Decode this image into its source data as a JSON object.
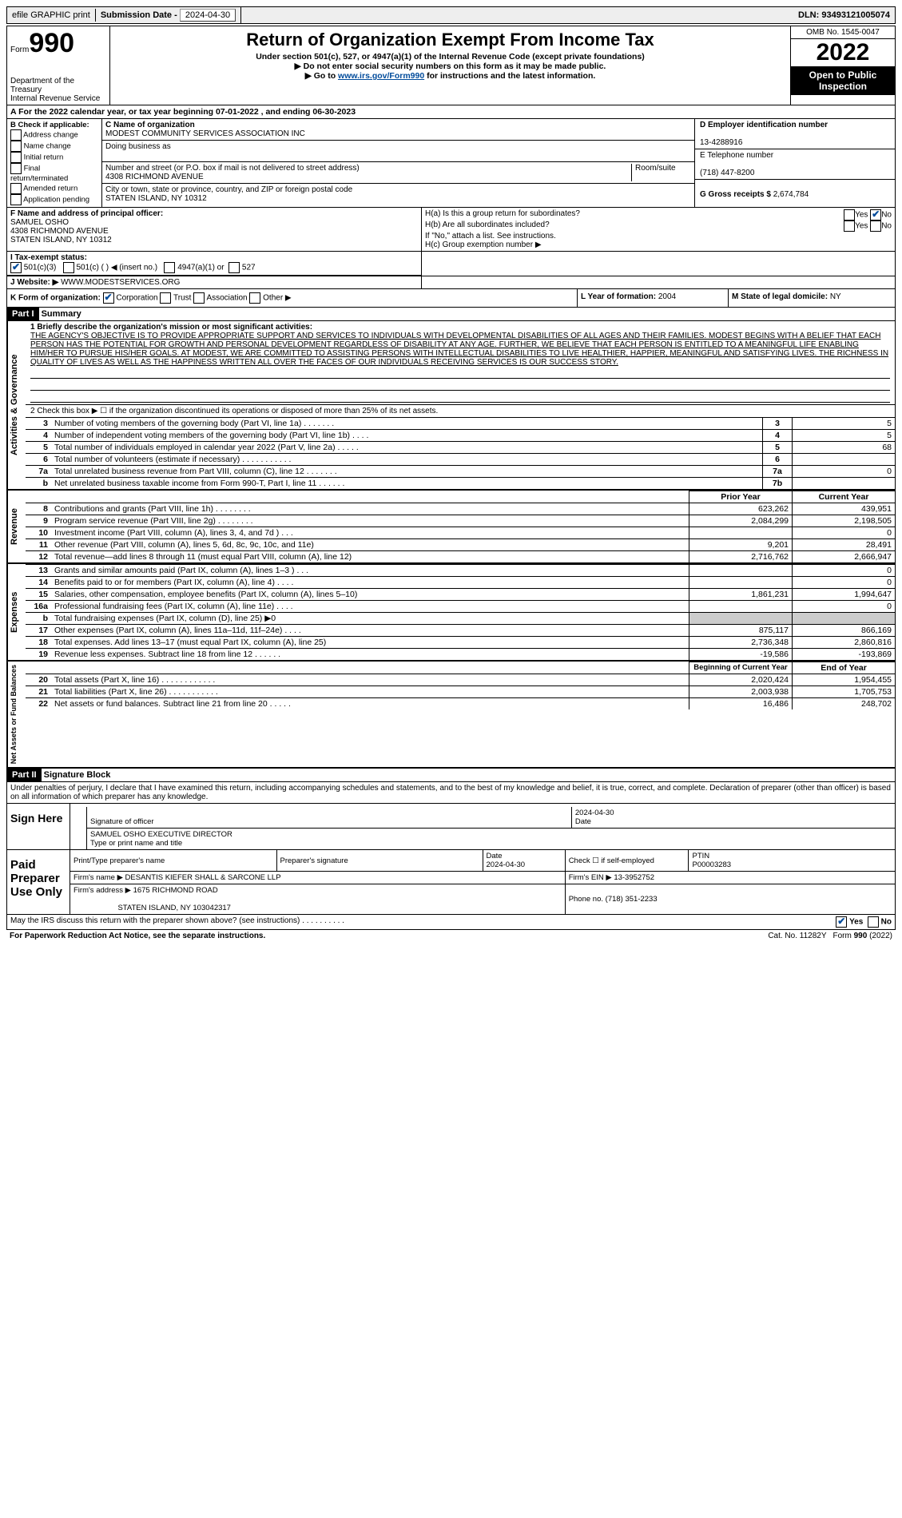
{
  "topbar": {
    "efile": "efile GRAPHIC print",
    "submission_label": "Submission Date - ",
    "submission_date": "2024-04-30",
    "dln_label": "DLN: ",
    "dln": "93493121005074"
  },
  "header": {
    "form_label": "Form",
    "form_num": "990",
    "dept": "Department of the Treasury\nInternal Revenue Service",
    "title": "Return of Organization Exempt From Income Tax",
    "sub1": "Under section 501(c), 527, or 4947(a)(1) of the Internal Revenue Code (except private foundations)",
    "sub2": "▶ Do not enter social security numbers on this form as it may be made public.",
    "sub3a": "▶ Go to ",
    "sub3_link": "www.irs.gov/Form990",
    "sub3b": " for instructions and the latest information.",
    "omb": "OMB No. 1545-0047",
    "year": "2022",
    "open": "Open to Public Inspection"
  },
  "row_a": {
    "text_a": "A For the 2022 calendar year, or tax year beginning ",
    "begin": "07-01-2022",
    "text_b": " , and ending ",
    "end": "06-30-2023"
  },
  "col_b": {
    "title": "B Check if applicable:",
    "items": [
      "Address change",
      "Name change",
      "Initial return",
      "Final return/terminated",
      "Amended return",
      "Application pending"
    ]
  },
  "col_c": {
    "name_label": "C Name of organization",
    "name": "MODEST COMMUNITY SERVICES ASSOCIATION INC",
    "dba_label": "Doing business as",
    "dba": "",
    "street_label": "Number and street (or P.O. box if mail is not delivered to street address)",
    "room_label": "Room/suite",
    "street": "4308 RICHMOND AVENUE",
    "city_label": "City or town, state or province, country, and ZIP or foreign postal code",
    "city": "STATEN ISLAND, NY  10312"
  },
  "col_d": {
    "d_label": "D Employer identification number",
    "d_val": "13-4288916",
    "e_label": "E Telephone number",
    "e_val": "(718) 447-8200",
    "g_label": "G Gross receipts $ ",
    "g_val": "2,674,784"
  },
  "row_f": {
    "f_label": "F  Name and address of principal officer:",
    "f_val": "SAMUEL OSHO\n4308 RICHMOND AVENUE\nSTATEN ISLAND, NY  10312",
    "i_label": "I   Tax-exempt status:",
    "i_501c3": "501(c)(3)",
    "i_501c": "501(c) (   ) ◀ (insert no.)",
    "i_4947": "4947(a)(1) or",
    "i_527": "527",
    "j_label": "J   Website: ▶",
    "j_val": "WWW.MODESTSERVICES.ORG"
  },
  "row_h": {
    "ha": "H(a)  Is this a group return for subordinates?",
    "hb": "H(b)  Are all subordinates included?",
    "hb_note": "If \"No,\" attach a list. See instructions.",
    "hc": "H(c)  Group exemption number ▶",
    "yes": "Yes",
    "no": "No"
  },
  "row_k": {
    "k": "K Form of organization:",
    "corp": "Corporation",
    "trust": "Trust",
    "assoc": "Association",
    "other": "Other ▶",
    "l": "L Year of formation: ",
    "l_val": "2004",
    "m": "M State of legal domicile: ",
    "m_val": "NY"
  },
  "part1": {
    "hdr": "Part I",
    "title": "Summary",
    "line1_label": "1   Briefly describe the organization's mission or most significant activities:",
    "mission": "THE AGENCY'S OBJECTIVE IS TO PROVIDE APPROPRIATE SUPPORT AND SERVICES TO INDIVIDUALS WITH DEVELOPMENTAL DISABILITIES OF ALL AGES AND THEIR FAMILIES. MODEST BEGINS WITH A BELIEF THAT EACH PERSON HAS THE POTENTIAL FOR GROWTH AND PERSONAL DEVELOPMENT REGARDLESS OF DISABILITY AT ANY AGE. FURTHER, WE BELIEVE THAT EACH PERSON IS ENTITLED TO A MEANINGFUL LIFE ENABLING HIM/HER TO PURSUE HIS/HER GOALS. AT MODEST, WE ARE COMMITTED TO ASSISTING PERSONS WITH INTELLECTUAL DISABILITIES TO LIVE HEALTHIER, HAPPIER, MEANINGFUL AND SATISFYING LIVES. THE RICHNESS IN QUALITY OF LIVES AS WELL AS THE HAPPINESS WRITTEN ALL OVER THE FACES OF OUR INDIVIDUALS RECEIVING SERVICES IS OUR SUCCESS STORY.",
    "line2": "2   Check this box ▶ ☐ if the organization discontinued its operations or disposed of more than 25% of its net assets.",
    "sections": {
      "gov": "Activities & Governance",
      "rev": "Revenue",
      "exp": "Expenses",
      "net": "Net Assets or Fund Balances"
    },
    "gov_lines": [
      {
        "n": "3",
        "d": "Number of voting members of the governing body (Part VI, line 1a)   .    .    .    .    .    .    .",
        "b": "3",
        "v": "5"
      },
      {
        "n": "4",
        "d": "Number of independent voting members of the governing body (Part VI, line 1b)   .    .    .    .",
        "b": "4",
        "v": "5"
      },
      {
        "n": "5",
        "d": "Total number of individuals employed in calendar year 2022 (Part V, line 2a)   .    .    .    .    .",
        "b": "5",
        "v": "68"
      },
      {
        "n": "6",
        "d": "Total number of volunteers (estimate if necessary)   .    .    .    .    .    .    .    .    .    .    .",
        "b": "6",
        "v": ""
      },
      {
        "n": "7a",
        "d": "Total unrelated business revenue from Part VIII, column (C), line 12   .    .    .    .    .    .    .",
        "b": "7a",
        "v": "0"
      },
      {
        "n": "b",
        "d": "Net unrelated business taxable income from Form 990-T, Part I, line 11    .    .    .    .    .    .",
        "b": "7b",
        "v": ""
      }
    ],
    "col_hdr_prior": "Prior Year",
    "col_hdr_curr": "Current Year",
    "rev_lines": [
      {
        "n": "8",
        "d": "Contributions and grants (Part VIII, line 1h)   .    .    .    .    .    .    .    .",
        "p": "623,262",
        "c": "439,951"
      },
      {
        "n": "9",
        "d": "Program service revenue (Part VIII, line 2g)   .    .    .    .    .    .    .    .",
        "p": "2,084,299",
        "c": "2,198,505"
      },
      {
        "n": "10",
        "d": "Investment income (Part VIII, column (A), lines 3, 4, and 7d )    .    .    .",
        "p": "",
        "c": "0"
      },
      {
        "n": "11",
        "d": "Other revenue (Part VIII, column (A), lines 5, 6d, 8c, 9c, 10c, and 11e)",
        "p": "9,201",
        "c": "28,491"
      },
      {
        "n": "12",
        "d": "Total revenue—add lines 8 through 11 (must equal Part VIII, column (A), line 12)",
        "p": "2,716,762",
        "c": "2,666,947"
      }
    ],
    "exp_lines": [
      {
        "n": "13",
        "d": "Grants and similar amounts paid (Part IX, column (A), lines 1–3 )   .    .    .",
        "p": "",
        "c": "0"
      },
      {
        "n": "14",
        "d": "Benefits paid to or for members (Part IX, column (A), line 4)   .    .    .    .",
        "p": "",
        "c": "0"
      },
      {
        "n": "15",
        "d": "Salaries, other compensation, employee benefits (Part IX, column (A), lines 5–10)",
        "p": "1,861,231",
        "c": "1,994,647"
      },
      {
        "n": "16a",
        "d": "Professional fundraising fees (Part IX, column (A), line 11e)   .    .    .    .",
        "p": "",
        "c": "0"
      },
      {
        "n": "b",
        "d": "Total fundraising expenses (Part IX, column (D), line 25) ▶0",
        "p": "shade",
        "c": "shade"
      },
      {
        "n": "17",
        "d": "Other expenses (Part IX, column (A), lines 11a–11d, 11f–24e)   .    .    .    .",
        "p": "875,117",
        "c": "866,169"
      },
      {
        "n": "18",
        "d": "Total expenses. Add lines 13–17 (must equal Part IX, column (A), line 25)",
        "p": "2,736,348",
        "c": "2,860,816"
      },
      {
        "n": "19",
        "d": "Revenue less expenses. Subtract line 18 from line 12   .    .    .    .    .    .",
        "p": "-19,586",
        "c": "-193,869"
      }
    ],
    "col_hdr_beg": "Beginning of Current Year",
    "col_hdr_end": "End of Year",
    "net_lines": [
      {
        "n": "20",
        "d": "Total assets (Part X, line 16)   .    .    .    .    .    .    .    .    .    .    .    .",
        "p": "2,020,424",
        "c": "1,954,455"
      },
      {
        "n": "21",
        "d": "Total liabilities (Part X, line 26)   .    .    .    .    .    .    .    .    .    .    .",
        "p": "2,003,938",
        "c": "1,705,753"
      },
      {
        "n": "22",
        "d": "Net assets or fund balances. Subtract line 21 from line 20   .    .    .    .    .",
        "p": "16,486",
        "c": "248,702"
      }
    ]
  },
  "part2": {
    "hdr": "Part II",
    "title": "Signature Block",
    "penalties": "Under penalties of perjury, I declare that I have examined this return, including accompanying schedules and statements, and to the best of my knowledge and belief, it is true, correct, and complete. Declaration of preparer (other than officer) is based on all information of which preparer has any knowledge."
  },
  "sign": {
    "label": "Sign Here",
    "sig_officer": "Signature of officer",
    "date": "Date",
    "date_val": "2024-04-30",
    "name_val": "SAMUEL OSHO  EXECUTIVE DIRECTOR",
    "name_label": "Type or print name and title"
  },
  "paid": {
    "label": "Paid Preparer Use Only",
    "print_name": "Print/Type preparer's name",
    "prep_sig": "Preparer's signature",
    "date_label": "Date",
    "date_val": "2024-04-30",
    "check_label": "Check ☐ if self-employed",
    "ptin_label": "PTIN",
    "ptin": "P00003283",
    "firm_name_label": "Firm's name    ▶ ",
    "firm_name": "DESANTIS KIEFER SHALL & SARCONE LLP",
    "firm_ein_label": "Firm's EIN ▶ ",
    "firm_ein": "13-3952752",
    "firm_addr_label": "Firm's address ▶ ",
    "firm_addr": "1675 RICHMOND ROAD",
    "firm_city": "STATEN ISLAND, NY  103042317",
    "phone_label": "Phone no. ",
    "phone": "(718) 351-2233"
  },
  "discuss": {
    "text": "May the IRS discuss this return with the preparer shown above? (see instructions)   .    .    .    .    .    .    .    .    .    .",
    "yes": "Yes",
    "no": "No"
  },
  "footer": {
    "pra": "For Paperwork Reduction Act Notice, see the separate instructions.",
    "cat": "Cat. No. 11282Y",
    "form": "Form 990 (2022)"
  }
}
